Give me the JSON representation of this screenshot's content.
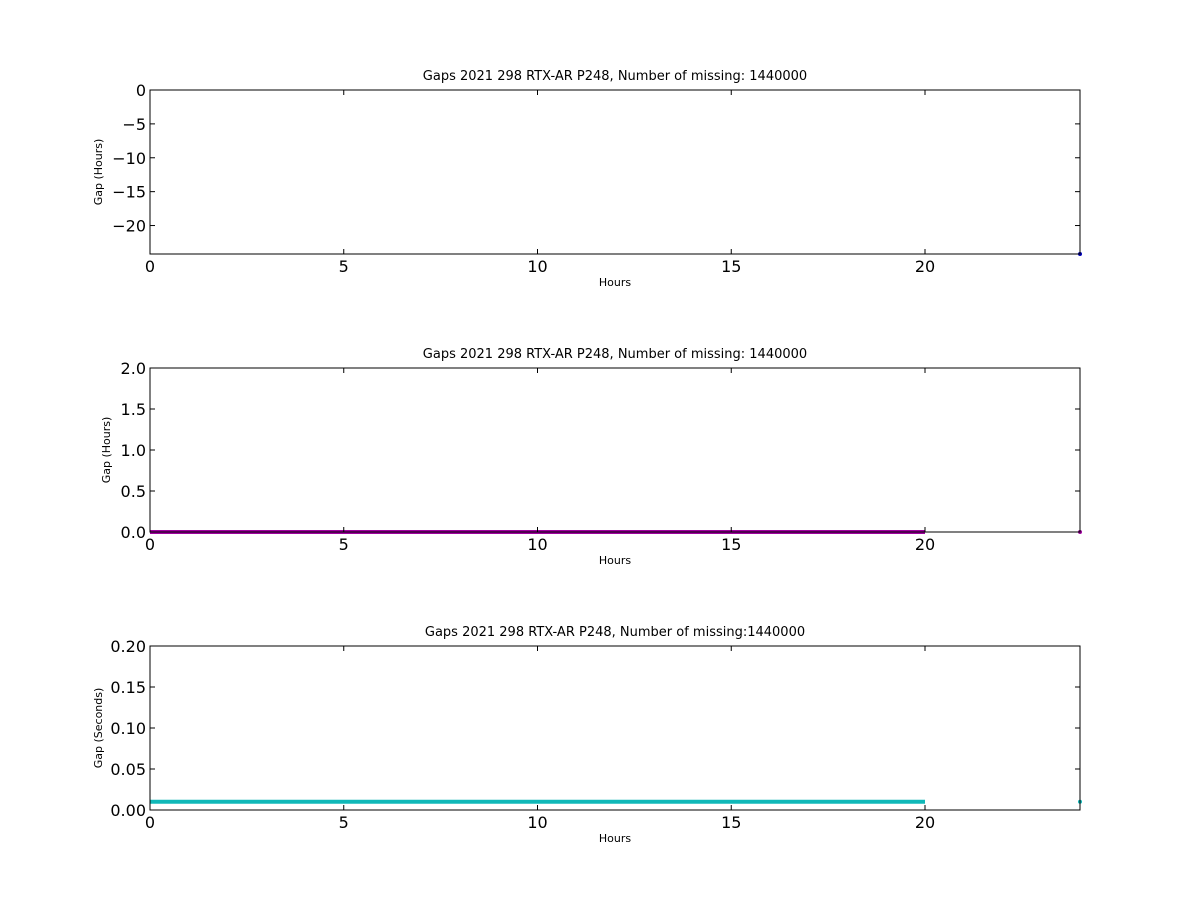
{
  "chart_data": [
    {
      "type": "scatter",
      "title": "Gaps 2021 298 RTX-AR  P248, Number of missing: 1440000",
      "xlabel": "Hours",
      "ylabel": "Gap (Hours)",
      "xlim": [
        0,
        24
      ],
      "ylim": [
        -24.2,
        0
      ],
      "xticks": [
        "0",
        "5",
        "10",
        "15",
        "20"
      ],
      "xtick_values": [
        0,
        5,
        10,
        15,
        20
      ],
      "yticks": [
        "0",
        "−5",
        "−10",
        "−15",
        "−20"
      ],
      "ytick_values": [
        0,
        -5,
        -10,
        -15,
        -20
      ],
      "grid": false,
      "series": [
        {
          "color": "#0000bf",
          "segments": [],
          "points": [
            [
              24,
              -24.2
            ]
          ]
        }
      ]
    },
    {
      "type": "scatter",
      "title": "Gaps 2021 298 RTX-AR  P248, Number of missing: 1440000",
      "xlabel": "Hours",
      "ylabel": "Gap (Hours)",
      "xlim": [
        0,
        24
      ],
      "ylim": [
        0,
        2.0
      ],
      "xticks": [
        "0",
        "5",
        "10",
        "15",
        "20"
      ],
      "xtick_values": [
        0,
        5,
        10,
        15,
        20
      ],
      "yticks": [
        "0.0",
        "0.5",
        "1.0",
        "1.5",
        "2.0"
      ],
      "ytick_values": [
        0,
        0.5,
        1.0,
        1.5,
        2.0
      ],
      "grid": false,
      "series": [
        {
          "color": "#a000a0",
          "segments": [
            [
              0,
              20,
              0.0
            ]
          ],
          "points": [
            [
              24,
              0.0
            ]
          ]
        }
      ]
    },
    {
      "type": "scatter",
      "title": "Gaps 2021 298 RTX-AR  P248, Number of missing:1440000",
      "xlabel": "Hours",
      "ylabel": "Gap (Seconds)",
      "xlim": [
        0,
        24
      ],
      "ylim": [
        0,
        0.2
      ],
      "xticks": [
        "0",
        "5",
        "10",
        "15",
        "20"
      ],
      "xtick_values": [
        0,
        5,
        10,
        15,
        20
      ],
      "yticks": [
        "0.00",
        "0.05",
        "0.10",
        "0.15",
        "0.20"
      ],
      "ytick_values": [
        0,
        0.05,
        0.1,
        0.15,
        0.2
      ],
      "grid": false,
      "series": [
        {
          "color": "#10b8b8",
          "segments": [
            [
              0,
              20,
              0.01
            ]
          ],
          "points": [
            [
              24,
              0.01
            ]
          ]
        }
      ]
    }
  ]
}
